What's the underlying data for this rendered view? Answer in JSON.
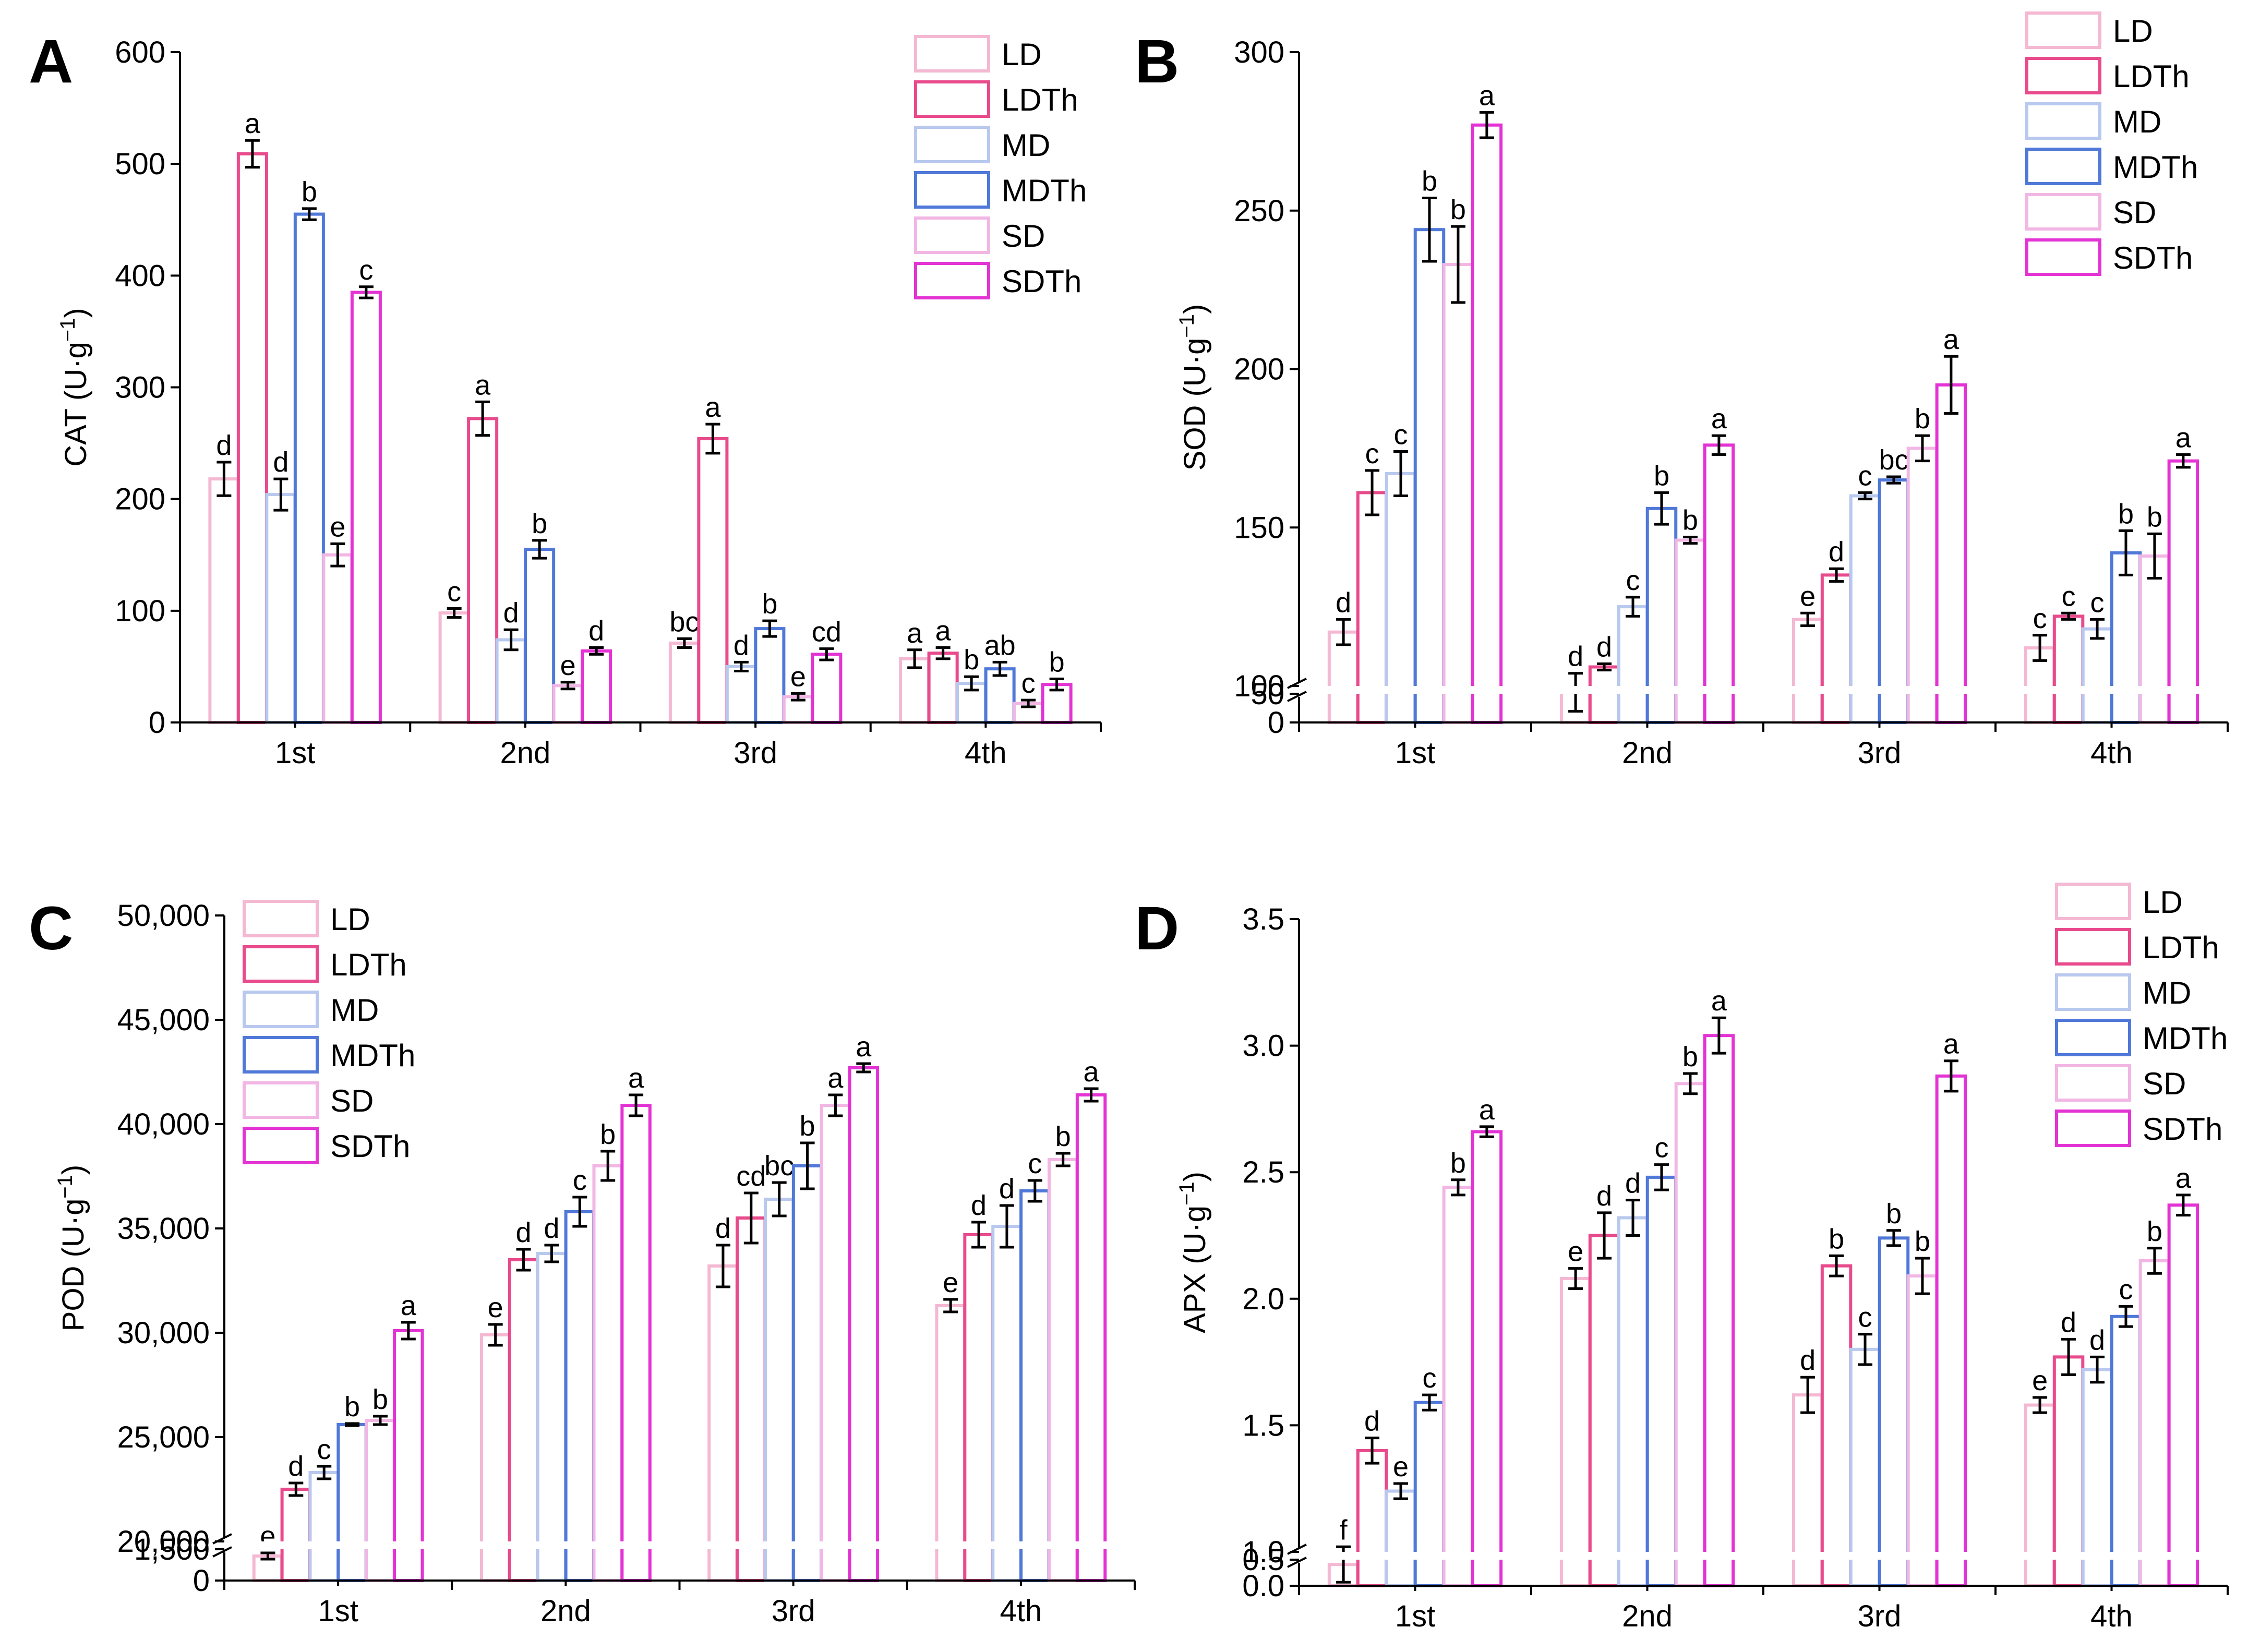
{
  "series_names": [
    "LD",
    "LDTh",
    "MD",
    "MDTh",
    "SD",
    "SDTh"
  ],
  "colors": [
    "#f4b8d2",
    "#e84a8c",
    "#b8c8ee",
    "#4f78d8",
    "#f2b6e4",
    "#e433d4"
  ],
  "chart_data": [
    {
      "panel": "A",
      "type": "bar",
      "ylabel": "CAT (U·g−1)",
      "ylabel_main": "CAT (U·g",
      "ylabel_sup": "−1",
      "ylabel_close": ")",
      "categories": [
        "1st",
        "2nd",
        "3rd",
        "4th"
      ],
      "ylim": [
        0,
        600
      ],
      "yticks": [
        0,
        100,
        200,
        300,
        400,
        500,
        600
      ],
      "ytick_labels": [
        "0",
        "100",
        "200",
        "300",
        "400",
        "500",
        "600"
      ],
      "break": null,
      "legend_position": "top-right",
      "series": [
        {
          "name": "LD",
          "values": [
            218,
            98,
            71,
            57
          ],
          "errors": [
            15,
            4,
            4,
            8
          ],
          "letters": [
            "d",
            "c",
            "bc",
            "a"
          ]
        },
        {
          "name": "LDTh",
          "values": [
            509,
            272,
            254,
            62
          ],
          "errors": [
            12,
            15,
            13,
            5
          ],
          "letters": [
            "a",
            "a",
            "a",
            "a"
          ]
        },
        {
          "name": "MD",
          "values": [
            204,
            74,
            50,
            35
          ],
          "errors": [
            14,
            9,
            4,
            6
          ],
          "letters": [
            "d",
            "d",
            "d",
            "b"
          ]
        },
        {
          "name": "MDTh",
          "values": [
            455,
            155,
            84,
            48
          ],
          "errors": [
            5,
            8,
            7,
            6
          ],
          "letters": [
            "b",
            "b",
            "b",
            "ab"
          ]
        },
        {
          "name": "SD",
          "values": [
            150,
            33,
            23,
            17
          ],
          "errors": [
            10,
            3,
            3,
            3
          ],
          "letters": [
            "e",
            "e",
            "e",
            "c"
          ]
        },
        {
          "name": "SDTh",
          "values": [
            385,
            64,
            61,
            34
          ],
          "errors": [
            5,
            3,
            5,
            5
          ],
          "letters": [
            "c",
            "d",
            "cd",
            "b"
          ]
        }
      ]
    },
    {
      "panel": "B",
      "type": "bar",
      "ylabel": "SOD (U·g−1)",
      "ylabel_main": "SOD (U·g",
      "ylabel_sup": "−1",
      "ylabel_close": ")",
      "categories": [
        "1st",
        "2nd",
        "3rd",
        "4th"
      ],
      "ylim": [
        0,
        300
      ],
      "yticks": [
        0,
        50,
        100,
        150,
        200,
        250,
        300
      ],
      "ytick_labels": [
        "0",
        "50",
        "100",
        "150",
        "200",
        "250",
        "300"
      ],
      "break": {
        "low_max": 50,
        "high_min": 100
      },
      "legend_position": "top-right",
      "series": [
        {
          "name": "LD",
          "values": [
            117,
            98,
            121,
            112
          ],
          "errors": [
            4,
            6,
            2,
            4
          ],
          "letters": [
            "d",
            "d",
            "e",
            "c"
          ]
        },
        {
          "name": "LDTh",
          "values": [
            161,
            106,
            135,
            122
          ],
          "errors": [
            7,
            1,
            2,
            1
          ],
          "letters": [
            "c",
            "d",
            "d",
            "c"
          ]
        },
        {
          "name": "MD",
          "values": [
            167,
            125,
            160,
            118
          ],
          "errors": [
            7,
            3,
            1,
            3
          ],
          "letters": [
            "c",
            "c",
            "c",
            "c"
          ]
        },
        {
          "name": "MDTh",
          "values": [
            244,
            156,
            165,
            142
          ],
          "errors": [
            10,
            5,
            1,
            7
          ],
          "letters": [
            "b",
            "b",
            "bc",
            "b"
          ]
        },
        {
          "name": "SD",
          "values": [
            233,
            146,
            175,
            141
          ],
          "errors": [
            12,
            1,
            4,
            7
          ],
          "letters": [
            "b",
            "b",
            "b",
            "b"
          ]
        },
        {
          "name": "SDTh",
          "values": [
            277,
            176,
            195,
            171
          ],
          "errors": [
            4,
            3,
            9,
            2
          ],
          "letters": [
            "a",
            "a",
            "a",
            "a"
          ]
        }
      ]
    },
    {
      "panel": "C",
      "type": "bar",
      "ylabel": "POD (U·g−1)",
      "ylabel_main": "POD (U·g",
      "ylabel_sup": "−1",
      "ylabel_close": ")",
      "categories": [
        "1st",
        "2nd",
        "3rd",
        "4th"
      ],
      "ylim": [
        0,
        50000
      ],
      "yticks": [
        0,
        1500,
        20000,
        25000,
        30000,
        35000,
        40000,
        45000,
        50000
      ],
      "ytick_labels": [
        "0",
        "1,500",
        "20,000",
        "25,000",
        "30,000",
        "35,000",
        "40,000",
        "45,000",
        "50,000"
      ],
      "break": {
        "low_max": 1500,
        "high_min": 20000
      },
      "legend_position": "top-left",
      "series": [
        {
          "name": "LD",
          "values": [
            19300,
            29900,
            33200,
            31300
          ],
          "errors": [
            150,
            500,
            1000,
            300
          ],
          "letters": [
            "e",
            "e",
            "d",
            "e"
          ]
        },
        {
          "name": "LDTh",
          "values": [
            22500,
            33500,
            35500,
            34700
          ],
          "errors": [
            300,
            500,
            1200,
            600
          ],
          "letters": [
            "d",
            "d",
            "cd",
            "d"
          ]
        },
        {
          "name": "MD",
          "values": [
            23300,
            33800,
            36400,
            35100
          ],
          "errors": [
            300,
            400,
            800,
            1000
          ],
          "letters": [
            "c",
            "d",
            "bc",
            "d"
          ]
        },
        {
          "name": "MDTh",
          "values": [
            25600,
            35800,
            38000,
            36800
          ],
          "errors": [
            50,
            700,
            1100,
            500
          ],
          "letters": [
            "b",
            "c",
            "b",
            "c"
          ]
        },
        {
          "name": "SD",
          "values": [
            25800,
            38000,
            40900,
            38300
          ],
          "errors": [
            200,
            700,
            500,
            300
          ],
          "letters": [
            "b",
            "b",
            "a",
            "b"
          ]
        },
        {
          "name": "SDTh",
          "values": [
            30100,
            40900,
            42700,
            41400
          ],
          "errors": [
            400,
            500,
            200,
            300
          ],
          "letters": [
            "a",
            "a",
            "a",
            "a"
          ]
        }
      ]
    },
    {
      "panel": "D",
      "type": "bar",
      "ylabel": "APX (U·g−1)",
      "ylabel_main": "APX (U·g",
      "ylabel_sup": "−1",
      "ylabel_close": ")",
      "categories": [
        "1st",
        "2nd",
        "3rd",
        "4th"
      ],
      "ylim": [
        0,
        3.5
      ],
      "yticks": [
        0,
        0.5,
        1.0,
        1.5,
        2.0,
        2.5,
        3.0,
        3.5
      ],
      "ytick_labels": [
        "0.0",
        "0.5",
        "1.0",
        "1.5",
        "2.0",
        "2.5",
        "3.0",
        "3.5"
      ],
      "break": {
        "low_max": 0.5,
        "high_min": 1.0
      },
      "legend_position": "top-right",
      "series": [
        {
          "name": "LD",
          "values": [
            0.95,
            2.08,
            1.62,
            1.58
          ],
          "errors": [
            0.07,
            0.04,
            0.07,
            0.03
          ],
          "letters": [
            "f",
            "e",
            "d",
            "e"
          ]
        },
        {
          "name": "LDTh",
          "values": [
            1.4,
            2.25,
            2.13,
            1.77
          ],
          "errors": [
            0.05,
            0.09,
            0.04,
            0.07
          ],
          "letters": [
            "d",
            "d",
            "b",
            "d"
          ]
        },
        {
          "name": "MD",
          "values": [
            1.24,
            2.32,
            1.8,
            1.72
          ],
          "errors": [
            0.03,
            0.07,
            0.06,
            0.05
          ],
          "letters": [
            "e",
            "d",
            "c",
            "d"
          ]
        },
        {
          "name": "MDTh",
          "values": [
            1.59,
            2.48,
            2.24,
            1.93
          ],
          "errors": [
            0.03,
            0.05,
            0.03,
            0.04
          ],
          "letters": [
            "c",
            "c",
            "b",
            "c"
          ]
        },
        {
          "name": "SD",
          "values": [
            2.44,
            2.85,
            2.09,
            2.15
          ],
          "errors": [
            0.03,
            0.04,
            0.07,
            0.05
          ],
          "letters": [
            "b",
            "b",
            "b",
            "b"
          ]
        },
        {
          "name": "SDTh",
          "values": [
            2.66,
            3.04,
            2.88,
            2.37
          ],
          "errors": [
            0.02,
            0.07,
            0.06,
            0.04
          ],
          "letters": [
            "a",
            "a",
            "a",
            "a"
          ]
        }
      ]
    }
  ]
}
